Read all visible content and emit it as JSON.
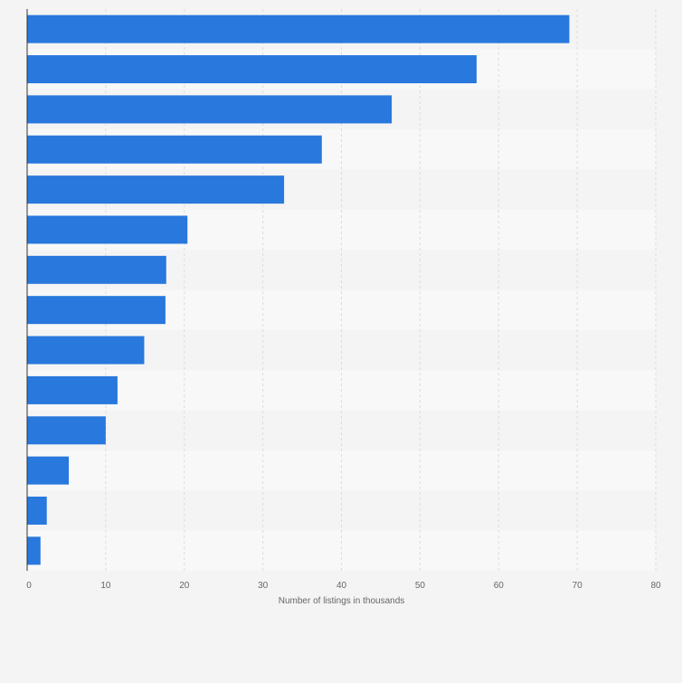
{
  "chart_data": {
    "type": "bar",
    "orientation": "horizontal",
    "categories": [
      "",
      "",
      "",
      "",
      "",
      "",
      "",
      "",
      "",
      "",
      "",
      "",
      "",
      ""
    ],
    "values": [
      69.0,
      57.2,
      46.4,
      37.5,
      32.7,
      20.4,
      17.7,
      17.6,
      14.9,
      11.5,
      10.0,
      5.3,
      2.5,
      1.7
    ],
    "xlabel": "Number of listings in thousands",
    "ylabel": "",
    "xlim": [
      0,
      80
    ],
    "xticks": [
      0,
      10,
      20,
      30,
      40,
      50,
      60,
      70,
      80
    ],
    "bar_color": "#2878dd",
    "band_colors": [
      "#f4f4f4",
      "#f8f8f8"
    ],
    "gridline_color": "#dcdcdc",
    "grid": true,
    "legend": "none"
  }
}
